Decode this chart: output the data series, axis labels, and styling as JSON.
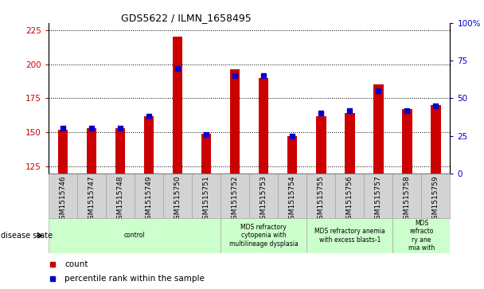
{
  "title": "GDS5622 / ILMN_1658495",
  "samples": [
    "GSM1515746",
    "GSM1515747",
    "GSM1515748",
    "GSM1515749",
    "GSM1515750",
    "GSM1515751",
    "GSM1515752",
    "GSM1515753",
    "GSM1515754",
    "GSM1515755",
    "GSM1515756",
    "GSM1515757",
    "GSM1515758",
    "GSM1515759"
  ],
  "counts": [
    152,
    153,
    153,
    162,
    220,
    149,
    196,
    190,
    147,
    162,
    164,
    185,
    167,
    170
  ],
  "percentile_ranks": [
    30,
    30,
    30,
    38,
    70,
    26,
    65,
    65,
    25,
    40,
    42,
    55,
    42,
    45
  ],
  "ylim_left": [
    120,
    230
  ],
  "ylim_right": [
    0,
    100
  ],
  "yticks_left": [
    125,
    150,
    175,
    200,
    225
  ],
  "yticks_right": [
    0,
    25,
    50,
    75,
    100
  ],
  "bar_color": "#cc0000",
  "marker_color": "#0000cc",
  "tick_label_color_left": "#cc0000",
  "tick_label_color_right": "#0000cc",
  "disease_groups": [
    {
      "label": "control",
      "start": 0,
      "end": 6,
      "color": "#ccffcc"
    },
    {
      "label": "MDS refractory\ncytopenia with\nmultilineage dysplasia",
      "start": 6,
      "end": 9,
      "color": "#ccffcc"
    },
    {
      "label": "MDS refractory anemia\nwith excess blasts-1",
      "start": 9,
      "end": 12,
      "color": "#ccffcc"
    },
    {
      "label": "MDS\nrefracto\nry ane\nmia with",
      "start": 12,
      "end": 14,
      "color": "#ccffcc"
    }
  ],
  "disease_state_label": "disease state",
  "bar_width": 0.35,
  "marker_size": 4
}
